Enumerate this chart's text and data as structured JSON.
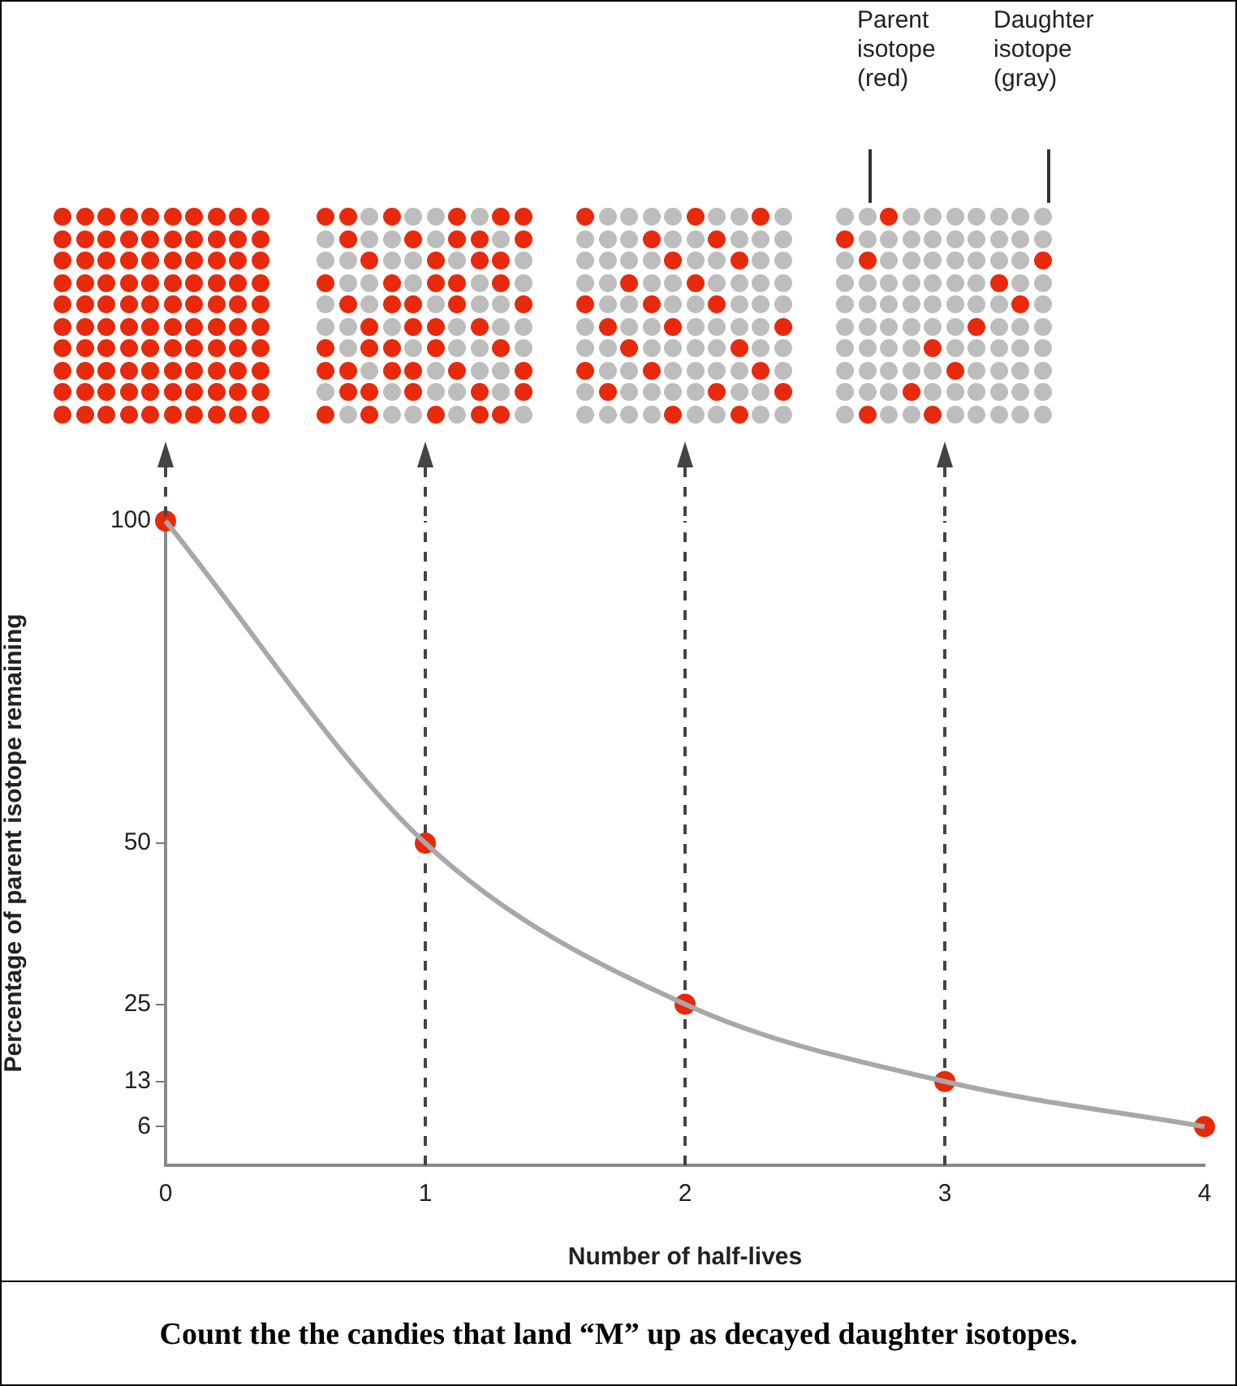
{
  "chart_data": {
    "type": "line",
    "xlabel": "Number of half-lives",
    "ylabel": "Percentage of parent isotope remaining",
    "x": [
      0,
      1,
      2,
      3,
      4
    ],
    "series": [
      {
        "type": "line",
        "marker": "none",
        "color": "#a8a8a8",
        "values": [
          100,
          50,
          25,
          13,
          6
        ]
      },
      {
        "type": "scatter",
        "color": "#e8290b",
        "values": [
          100,
          50,
          25,
          13,
          6
        ]
      }
    ],
    "xlim": [
      0,
      4
    ],
    "xticks": [
      0,
      1,
      2,
      3,
      4
    ],
    "ylim": [
      0,
      100
    ],
    "yticks": [
      6,
      13,
      25,
      50,
      100
    ],
    "marker": "circle",
    "line_style": "solid",
    "grid": false,
    "legend": false,
    "ref_lines": [
      {
        "axis": "x",
        "value": 1,
        "line_style": "dashed",
        "color": "#444444"
      },
      {
        "axis": "x",
        "value": 2,
        "line_style": "dashed",
        "color": "#444444"
      },
      {
        "axis": "x",
        "value": 3,
        "line_style": "dashed",
        "color": "#444444"
      }
    ],
    "annotations": [
      "Parent\nisotope\n(red)",
      "Daughter\nisotope\n(gray)",
      "Count the the candies that land “M” up as decayed daughter isotopes."
    ]
  }
}
